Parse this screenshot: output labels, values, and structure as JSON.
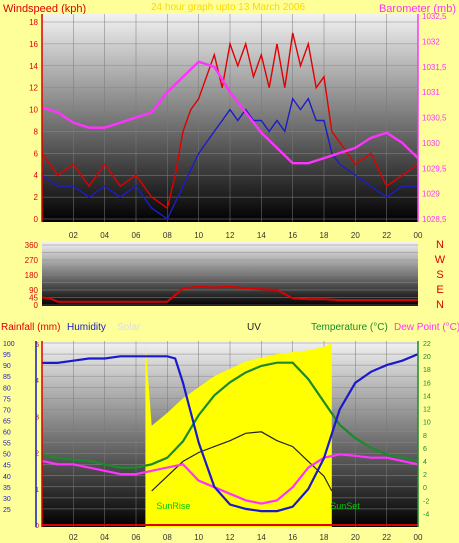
{
  "colors": {
    "background": "#ffff99",
    "wind": "#e00000",
    "wind_avg": "#1c1cc8",
    "pressure": "#ff33ff",
    "direction": "#dd0000",
    "humidity": "#1a1acc",
    "temperature": "#1a8a2a",
    "dewpoint": "#ff33ff",
    "solar": "#ffff00",
    "uv": "#222222",
    "rainfall": "#dd0000",
    "solar_label": "#dddddd",
    "sunrise_label": "#00cc00"
  },
  "header": {
    "left_label": "Windspeed (kph)",
    "center_label": "24 hour graph upto 13 March 2006",
    "right_label": "Barometer (mb)"
  },
  "lower_header": {
    "rainfall": "Rainfall (mm)",
    "humidity": "Humidity",
    "solar": "Solar",
    "uv": "UV",
    "temperature": "Temperature (°C)",
    "dewpoint": "Dew Point (°C)"
  },
  "direction_letters": [
    "N",
    "W",
    "S",
    "E",
    "N"
  ],
  "markers": {
    "sunrise": "SunRise",
    "sunset": "SunSet"
  },
  "chart_data": [
    {
      "type": "line",
      "title": "24 hour graph upto 13 March 2006",
      "x_ticks": [
        "02",
        "04",
        "06",
        "08",
        "10",
        "12",
        "14",
        "16",
        "18",
        "20",
        "22",
        "00"
      ],
      "x_range_hours": [
        0,
        24
      ],
      "ylabel": "Windspeed (kph)",
      "ylim": [
        0,
        18
      ],
      "y_ticks": [
        0,
        2,
        4,
        6,
        8,
        10,
        12,
        14,
        16,
        18
      ],
      "y2label": "Barometer (mb)",
      "y2lim": [
        1028.5,
        1032.5
      ],
      "y2_ticks": [
        "1028,5",
        "1029",
        "1029,5",
        "1030",
        "1030,5",
        "1031",
        "1031,5",
        "1032",
        "1032,5"
      ],
      "series": [
        {
          "key": "gust",
          "hours": [
            0,
            1,
            2,
            3,
            4,
            5,
            6,
            7,
            8,
            8.5,
            9,
            9.5,
            10,
            10.5,
            11,
            11.5,
            12,
            12.5,
            13,
            13.5,
            14,
            14.5,
            15,
            15.5,
            16,
            16.5,
            17,
            17.5,
            18,
            18.5,
            19,
            20,
            21,
            22,
            23,
            24
          ],
          "values": [
            6,
            4,
            5,
            3,
            5,
            3,
            4,
            2,
            1,
            4,
            8,
            10,
            11,
            13,
            15,
            12,
            16,
            14,
            16,
            13,
            15,
            12,
            16,
            12,
            17,
            14,
            16,
            12,
            13,
            8,
            7,
            5,
            6,
            3,
            4,
            5
          ]
        },
        {
          "key": "average",
          "hours": [
            0,
            1,
            2,
            3,
            4,
            5,
            6,
            7,
            8,
            9,
            10,
            10.5,
            11,
            11.5,
            12,
            12.5,
            13,
            13.5,
            14,
            14.5,
            15,
            15.5,
            16,
            16.5,
            17,
            17.5,
            18,
            18.5,
            19,
            20,
            21,
            22,
            23,
            24
          ],
          "values": [
            4,
            3,
            3,
            2,
            3,
            2,
            3,
            1,
            0,
            3,
            6,
            7,
            8,
            9,
            10,
            9,
            10,
            9,
            9,
            8,
            9,
            8,
            11,
            10,
            11,
            9,
            9,
            6,
            5,
            4,
            3,
            2,
            3,
            3
          ]
        },
        {
          "key": "barometer",
          "hours": [
            0,
            1,
            2,
            3,
            4,
            5,
            6,
            7,
            8,
            9,
            10,
            11,
            12,
            13,
            14,
            15,
            16,
            17,
            18,
            19,
            20,
            21,
            22,
            23,
            24
          ],
          "values": [
            1030.7,
            1030.6,
            1030.4,
            1030.3,
            1030.3,
            1030.4,
            1030.5,
            1030.6,
            1031.0,
            1031.3,
            1031.6,
            1031.5,
            1031.0,
            1030.6,
            1030.2,
            1029.9,
            1029.6,
            1029.6,
            1029.7,
            1029.8,
            1029.9,
            1030.1,
            1030.2,
            1030.0,
            1029.7
          ]
        }
      ],
      "grid": true
    },
    {
      "type": "line",
      "title": "",
      "ylim": [
        0,
        360
      ],
      "y_ticks": [
        0,
        45,
        90,
        135,
        180,
        225,
        270,
        315,
        360
      ],
      "y_tick_labels": [
        "0",
        "45",
        "90",
        "180",
        "270",
        "360"
      ],
      "series": [
        {
          "key": "direction",
          "hours": [
            0,
            0.5,
            1,
            2,
            3,
            4,
            5,
            6,
            7,
            8,
            8.5,
            9,
            10,
            11,
            12,
            13,
            14,
            15,
            16,
            17,
            18,
            19,
            20,
            21,
            22,
            23,
            24
          ],
          "values": [
            45,
            40,
            20,
            20,
            20,
            20,
            20,
            20,
            20,
            20,
            60,
            100,
            110,
            105,
            110,
            100,
            95,
            90,
            40,
            35,
            35,
            30,
            30,
            30,
            30,
            30,
            30
          ]
        }
      ],
      "grid": true
    },
    {
      "type": "line",
      "title": "",
      "x_ticks": [
        "02",
        "04",
        "06",
        "08",
        "10",
        "12",
        "14",
        "16",
        "18",
        "20",
        "22",
        "00"
      ],
      "ylabel": "Humidity",
      "ylim": [
        20,
        100
      ],
      "y_ticks": [
        25,
        30,
        35,
        40,
        45,
        50,
        55,
        60,
        65,
        70,
        75,
        80,
        85,
        90,
        95,
        100
      ],
      "y2label": "Temperature (°C)",
      "y2lim": [
        -5,
        22
      ],
      "y2_ticks": [
        -4,
        -2,
        0,
        2,
        4,
        6,
        8,
        10,
        12,
        14,
        16,
        18,
        20,
        22
      ],
      "series": [
        {
          "key": "humidity",
          "hours": [
            0,
            1,
            2,
            3,
            4,
            5,
            6,
            7,
            8,
            8.5,
            9,
            10,
            11,
            12,
            13,
            14,
            15,
            16,
            17,
            18,
            19,
            20,
            21,
            22,
            23,
            24
          ],
          "values": [
            91,
            91,
            92,
            93,
            93,
            94,
            94,
            94,
            94,
            93,
            82,
            55,
            35,
            27,
            25,
            24,
            24,
            26,
            34,
            48,
            70,
            82,
            87,
            90,
            92,
            95
          ]
        },
        {
          "key": "temperature",
          "hours": [
            0,
            1,
            2,
            3,
            4,
            5,
            6,
            7,
            8,
            9,
            10,
            11,
            12,
            13,
            14,
            15,
            16,
            17,
            18,
            19,
            20,
            21,
            22,
            23,
            24
          ],
          "values": [
            5.0,
            4.5,
            4.2,
            4.0,
            3.5,
            3.0,
            3.0,
            3.5,
            4.5,
            7.0,
            11.0,
            14.0,
            16.0,
            17.5,
            18.5,
            19.0,
            19.0,
            16.5,
            13.0,
            9.5,
            7.5,
            6.0,
            5.0,
            4.5,
            4.0
          ]
        },
        {
          "key": "dewpoint",
          "hours": [
            0,
            1,
            2,
            3,
            4,
            5,
            6,
            7,
            8,
            9,
            10,
            11,
            12,
            13,
            14,
            15,
            16,
            17,
            18,
            19,
            20,
            21,
            22,
            23,
            24
          ],
          "values": [
            4.0,
            3.5,
            3.5,
            3.0,
            2.5,
            2.0,
            2.0,
            2.5,
            3.0,
            3.5,
            1.0,
            0.0,
            -1.0,
            -2.0,
            -2.5,
            -2.0,
            0.0,
            3.0,
            4.5,
            5.0,
            4.8,
            4.5,
            4.5,
            4.0,
            3.5
          ]
        },
        {
          "key": "uv",
          "hours": [
            7,
            7.5,
            8,
            9,
            10,
            11,
            12,
            13,
            14,
            15,
            16,
            17,
            18,
            18.5
          ],
          "uv_scale_values": [
            0,
            0.5,
            1.0,
            2.0,
            2.6,
            3.0,
            3.4,
            3.9,
            4.0,
            3.4,
            3.0,
            2.0,
            1.0,
            0
          ]
        },
        {
          "key": "solar",
          "hours": [
            6.6,
            7,
            8,
            9,
            10,
            11,
            12,
            13,
            14,
            15,
            16,
            17,
            18,
            18.5
          ],
          "rel_values": [
            1.0,
            0.55,
            0.62,
            0.7,
            0.76,
            0.82,
            0.86,
            0.9,
            0.92,
            0.94,
            0.95,
            0.96,
            0.98,
            1.0
          ]
        },
        {
          "key": "rainfall",
          "hours": [
            0,
            24
          ],
          "values": [
            0,
            0
          ]
        }
      ],
      "rain_ylim": [
        0,
        5
      ],
      "rain_ticks": [
        0,
        1,
        2,
        3,
        4,
        5
      ],
      "grid": true
    }
  ]
}
